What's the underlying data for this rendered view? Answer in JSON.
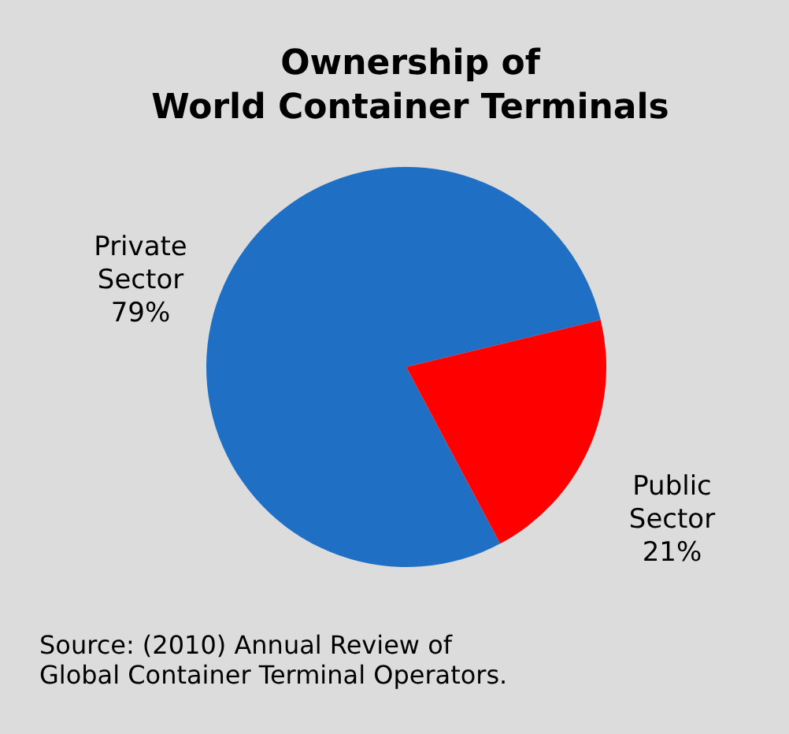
{
  "chart_data": {
    "type": "pie",
    "title": "Ownership of\nWorld Container Terminals",
    "categories": [
      "Private Sector",
      "Public Sector"
    ],
    "values": [
      79,
      21
    ],
    "colors": [
      "#1f6fc5",
      "#ff0000"
    ],
    "value_labels": [
      "79%",
      "21%"
    ],
    "legend": false,
    "annotations": [
      "Source: (2010) Annual Review of\nGlobal Container Terminal Operators."
    ]
  }
}
